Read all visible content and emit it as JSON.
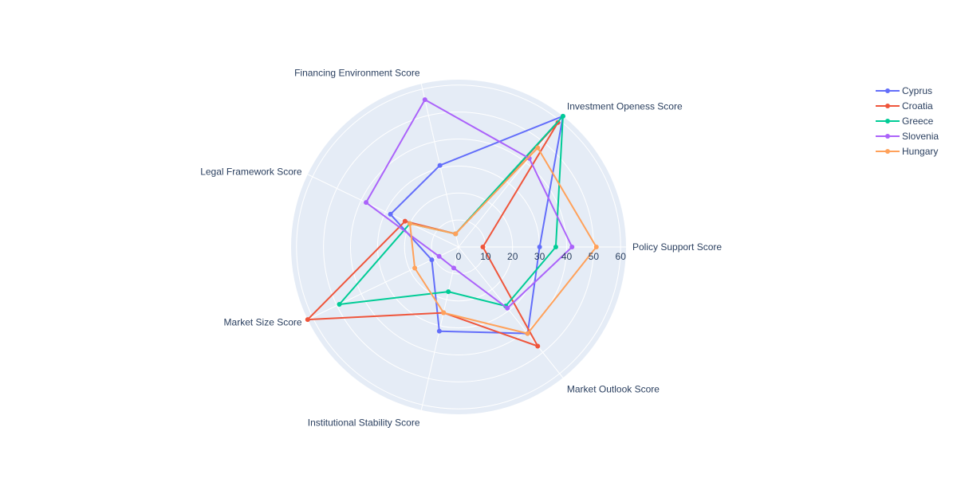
{
  "chart_data": {
    "type": "radar",
    "title": "",
    "axes": [
      "Policy Support Score",
      "Market Outlook Score",
      "Institutional Stability Score",
      "Market Size Score",
      "Legal Framework Score",
      "Financing Environment Score",
      "Investment Openess Score"
    ],
    "radial_range": [
      0,
      62
    ],
    "radial_ticks": [
      0,
      10,
      20,
      30,
      40,
      50,
      60
    ],
    "grid": true,
    "legend_position": "top-right",
    "series": [
      {
        "name": "Cyprus",
        "color": "#636efa",
        "values": [
          30,
          41,
          32,
          11,
          28,
          31,
          62
        ]
      },
      {
        "name": "Croatia",
        "color": "#ef553b",
        "values": [
          9,
          47,
          25,
          62,
          22,
          5,
          59
        ]
      },
      {
        "name": "Greece",
        "color": "#00cc96",
        "values": [
          36,
          28,
          17,
          49,
          20,
          5,
          62
        ]
      },
      {
        "name": "Slovenia",
        "color": "#ab63fa",
        "values": [
          42,
          29,
          8,
          8,
          38,
          56,
          42
        ]
      },
      {
        "name": "Hungary",
        "color": "#ffa15a",
        "values": [
          51,
          41,
          25,
          18,
          20,
          5,
          47
        ]
      }
    ]
  }
}
